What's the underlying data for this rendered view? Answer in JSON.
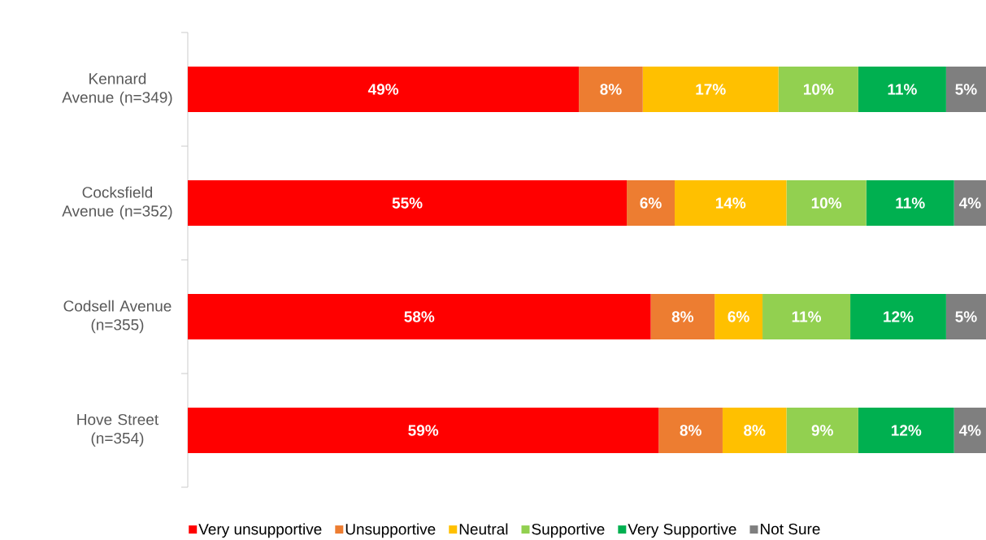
{
  "chart_data": {
    "type": "bar",
    "orientation": "horizontal",
    "stacked": true,
    "categories": [
      "Kennard Avenue (n=349)",
      "Cocksfield Avenue (n=352)",
      "Codsell Avenue (n=355)",
      "Hove Street (n=354)"
    ],
    "tick_labels": "y",
    "legend": "bottom",
    "series": [
      {
        "name": "Very unsupportive",
        "color": "#ff0000",
        "values": [
          49,
          55,
          58,
          59
        ],
        "value_labels": [
          "49%",
          "55%",
          "58%",
          "59%"
        ]
      },
      {
        "name": "Unsupportive",
        "color": "#ed7d31",
        "values": [
          8,
          6,
          8,
          8
        ],
        "value_labels": [
          "8%",
          "6%",
          "8%",
          "8%"
        ]
      },
      {
        "name": "Neutral",
        "color": "#ffc000",
        "values": [
          17,
          14,
          6,
          8
        ],
        "value_labels": [
          "17%",
          "14%",
          "6%",
          "8%"
        ]
      },
      {
        "name": "Supportive",
        "color": "#92d050",
        "values": [
          10,
          10,
          11,
          9
        ],
        "value_labels": [
          "10%",
          "10%",
          "11%",
          "9%"
        ]
      },
      {
        "name": "Very Supportive",
        "color": "#00b050",
        "values": [
          11,
          11,
          12,
          12
        ],
        "value_labels": [
          "11%",
          "11%",
          "12%",
          "12%"
        ]
      },
      {
        "name": "Not Sure",
        "color": "#7f7f7f",
        "values": [
          5,
          4,
          5,
          4
        ],
        "value_labels": [
          "5%",
          "4%",
          "5%",
          "4%"
        ]
      }
    ]
  }
}
